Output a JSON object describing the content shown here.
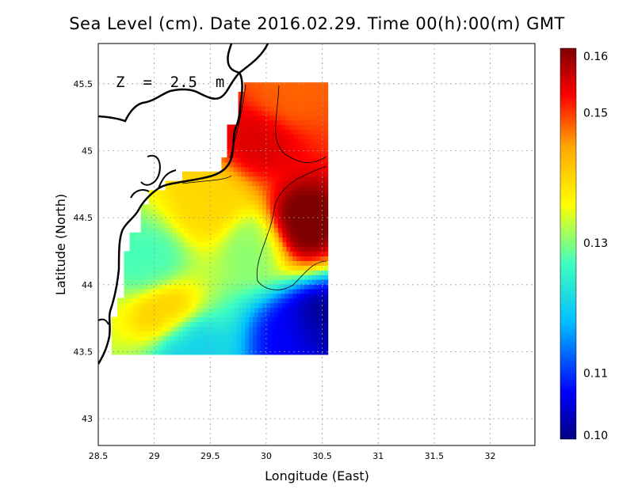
{
  "chart_data": {
    "type": "heatmap",
    "title": "Sea Level (cm). Date 2016.02.29. Time 00(h):00(m) GMT",
    "annotation": "Z  =  2.5  m",
    "xlabel": "Longitude (East)",
    "ylabel": "Latitude (North)",
    "xlim": [
      28.5,
      32.4
    ],
    "ylim": [
      42.8,
      45.8
    ],
    "x_ticks": [
      "28.5",
      "29",
      "29.5",
      "30",
      "30.5",
      "31",
      "31.5",
      "32"
    ],
    "y_ticks": [
      "43",
      "43.5",
      "44",
      "44.5",
      "45",
      "45.5"
    ],
    "grid": true,
    "colorbar": {
      "min": 0.1,
      "max": 0.16,
      "tick_labels": [
        "0.16",
        "0.15",
        "0.13",
        "0.11",
        "0.10"
      ],
      "tick_values": [
        0.16,
        0.15,
        0.13,
        0.11,
        0.1
      ],
      "colors": [
        "#00007f",
        "#0000ff",
        "#00bfff",
        "#40ffbf",
        "#ffff00",
        "#ffa500",
        "#ff0000",
        "#7f0000"
      ]
    },
    "data_extent": {
      "lon": [
        28.65,
        30.55
      ],
      "lat": [
        43.48,
        45.5
      ]
    },
    "field_hotspots": [
      {
        "lon": 30.3,
        "lat": 44.45,
        "value": 0.162
      },
      {
        "lon": 29.95,
        "lat": 45.1,
        "value": 0.155
      },
      {
        "lon": 30.15,
        "lat": 45.4,
        "value": 0.148
      },
      {
        "lon": 30.5,
        "lat": 43.7,
        "value": 0.1
      },
      {
        "lon": 30.3,
        "lat": 43.6,
        "value": 0.107
      },
      {
        "lon": 29.3,
        "lat": 43.55,
        "value": 0.12
      },
      {
        "lon": 28.95,
        "lat": 44.15,
        "value": 0.127
      },
      {
        "lon": 29.1,
        "lat": 43.8,
        "value": 0.142
      },
      {
        "lon": 29.5,
        "lat": 44.6,
        "value": 0.14
      },
      {
        "lon": 29.9,
        "lat": 44.3,
        "value": 0.13
      }
    ]
  }
}
